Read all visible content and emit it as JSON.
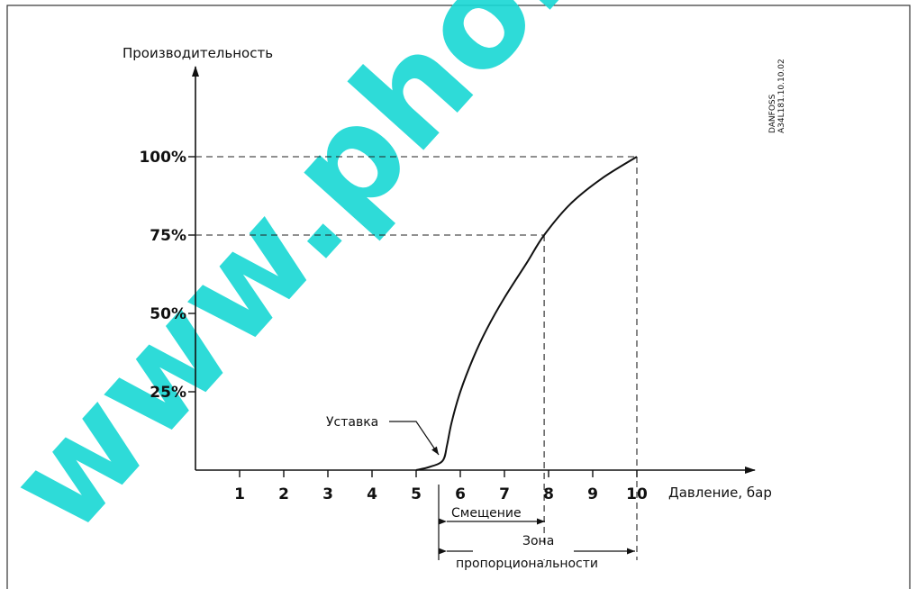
{
  "chart_data": {
    "type": "line",
    "ylabel": "Производительность",
    "xlabel": "Давление, бар",
    "x_ticks": [
      "1",
      "2",
      "3",
      "4",
      "5",
      "6",
      "7",
      "8",
      "9",
      "10"
    ],
    "y_ticks": [
      "25%",
      "50%",
      "75%",
      "100%"
    ],
    "xlim": [
      0,
      10
    ],
    "ylim": [
      0,
      100
    ],
    "series": [
      {
        "points": [
          [
            5.0,
            0
          ],
          [
            5.3,
            1
          ],
          [
            5.6,
            3
          ],
          [
            5.7,
            8
          ],
          [
            5.8,
            15
          ],
          [
            6.0,
            25
          ],
          [
            6.3,
            36
          ],
          [
            6.6,
            45
          ],
          [
            7.0,
            55
          ],
          [
            7.5,
            66
          ],
          [
            7.9,
            75
          ],
          [
            8.5,
            85
          ],
          [
            9.2,
            93
          ],
          [
            10.0,
            100
          ]
        ]
      }
    ],
    "reference_lines": [
      {
        "y": 100,
        "x": 10
      },
      {
        "y": 75,
        "x": 7.9
      }
    ],
    "annotations": {
      "setpoint": "Уставка",
      "offset": "Смещение",
      "band_line1": "Зона",
      "band_line2": "пропорциональности"
    },
    "code_line1": "DANFOSS",
    "code_line2": "A34L181.10.10.02",
    "grid": false
  },
  "watermark": "www.pholod.com"
}
